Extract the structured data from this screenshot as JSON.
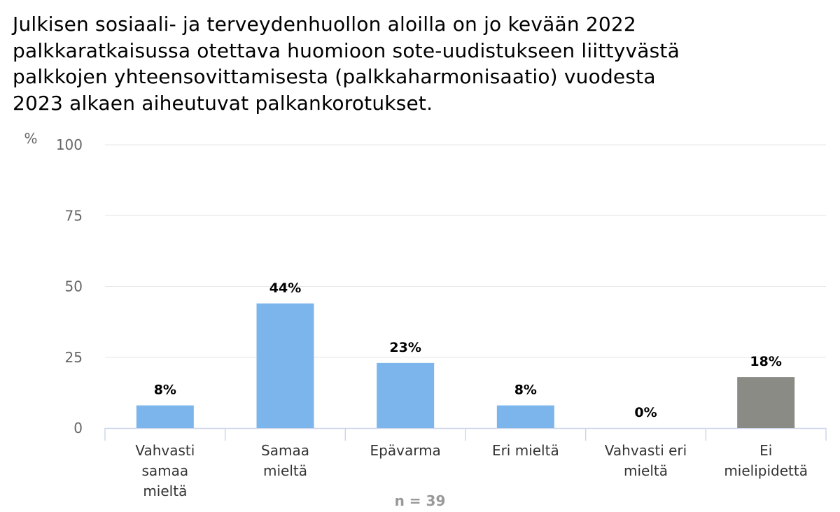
{
  "title_lines": [
    "Julkisen sosiaali- ja terveydenhuollon aloilla on jo kevään 2022",
    "palkkaratkaisussa otettava huomioon sote-uudistukseen liittyvästä",
    "palkkojen yhteensovittamisesta (palkkaharmonisaatio) vuodesta",
    "2023 alkaen aiheutuvat palkankorotukset."
  ],
  "chart_data": {
    "type": "bar",
    "title": "Julkisen sosiaali- ja terveydenhuollon aloilla on jo kevään 2022 palkkaratkaisussa otettava huomioon sote-uudistukseen liittyvästä palkkojen yhteensovittamisesta (palkkaharmonisaatio) vuodesta 2023 alkaen aiheutuvat palkankorotukset.",
    "ylabel": "%",
    "xlabel": "",
    "ylim": [
      0,
      100
    ],
    "yticks": [
      "0",
      "25",
      "50",
      "75",
      "100"
    ],
    "grid": true,
    "categories": [
      [
        "Vahvasti",
        "samaa",
        "mieltä"
      ],
      [
        "Samaa",
        "mieltä"
      ],
      [
        "Epävarma"
      ],
      [
        "Eri mieltä"
      ],
      [
        "Vahvasti eri",
        "mieltä"
      ],
      [
        "Ei",
        "mielipidettä"
      ]
    ],
    "values": [
      8,
      44,
      23,
      8,
      0,
      18
    ],
    "value_labels": [
      "8%",
      "44%",
      "23%",
      "8%",
      "0%",
      "18%"
    ],
    "colors": [
      "#7cb5ec",
      "#7cb5ec",
      "#7cb5ec",
      "#7cb5ec",
      "#7cb5ec",
      "#8b8b85"
    ],
    "annotation": "n = 39"
  },
  "colors": {
    "bar": "#7cb5ec",
    "bar_neutral": "#8b8b85",
    "grid": "#e6e6e6",
    "axis": "#ccd6eb",
    "tick_text": "#666666",
    "note_text": "#999999"
  }
}
